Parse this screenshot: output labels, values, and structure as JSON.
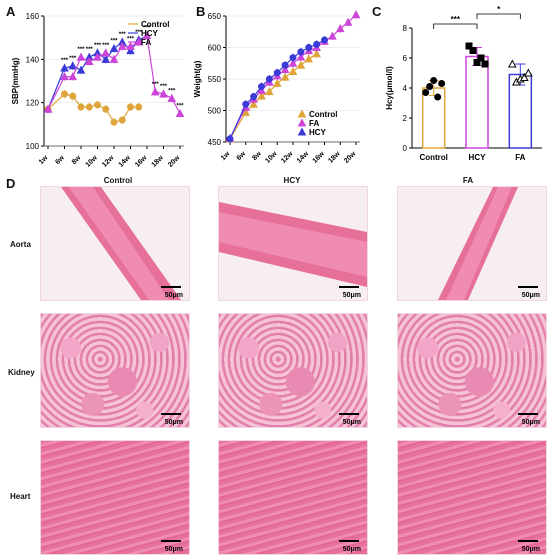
{
  "panel_labels": {
    "a": "A",
    "b": "B",
    "c": "C",
    "d": "D"
  },
  "colors": {
    "control": "#e0a53a",
    "hcy": "#3b3bd8",
    "fa": "#cc44d8",
    "axis": "#000000",
    "grid": "#dddddd"
  },
  "chart_data": [
    {
      "type": "line",
      "panel": "A",
      "ylabel": "SBP(mmHg)",
      "xlabel": "",
      "ylim": [
        100,
        160
      ],
      "yticks": [
        100,
        120,
        140,
        160
      ],
      "categories": [
        "1w",
        "6w",
        "8w",
        "10w",
        "12w",
        "14w",
        "16w",
        "18w",
        "20w"
      ],
      "legend": [
        "Control",
        "HCY",
        "FA"
      ],
      "legend_position": "top-right",
      "series": [
        {
          "name": "Control",
          "color": "#e0a53a",
          "x": [
            1,
            6,
            7,
            8,
            9,
            10,
            11,
            12,
            13,
            14,
            15,
            16
          ],
          "y": [
            117,
            124,
            123,
            118,
            118,
            119,
            117,
            111,
            112,
            118,
            118,
            null
          ]
        },
        {
          "name": "HCY",
          "color": "#3b3bd8",
          "x": [
            1,
            6,
            7,
            8,
            9,
            10,
            11,
            12,
            13,
            14,
            15,
            16
          ],
          "y": [
            117,
            136,
            137,
            135,
            141,
            143,
            140,
            145,
            148,
            144,
            149,
            151
          ]
        },
        {
          "name": "FA",
          "color": "#cc44d8",
          "x": [
            1,
            6,
            7,
            8,
            9,
            10,
            11,
            12,
            13,
            14,
            15,
            16,
            17,
            18,
            19,
            20
          ],
          "y": [
            117,
            132,
            132,
            141,
            139,
            141,
            143,
            140,
            146,
            146,
            148,
            151,
            125,
            124,
            122,
            115
          ]
        }
      ],
      "star_labels": [
        "***",
        "***",
        "***",
        "***",
        "***",
        "***",
        "***",
        "***",
        "***",
        "***",
        "***",
        "***",
        "***",
        "***",
        "***",
        "***"
      ]
    },
    {
      "type": "line",
      "panel": "B",
      "ylabel": "Weight(g)",
      "xlabel": "",
      "ylim": [
        450,
        650
      ],
      "yticks": [
        450,
        500,
        550,
        600,
        650
      ],
      "categories": [
        "1w",
        "6w",
        "8w",
        "10w",
        "12w",
        "14w",
        "16w",
        "18w",
        "20w"
      ],
      "legend": [
        "Control",
        "FA",
        "HCY"
      ],
      "legend_position": "bottom-right",
      "series": [
        {
          "name": "Control",
          "color": "#e0a53a",
          "x": [
            1,
            6,
            7,
            8,
            9,
            10,
            11,
            12,
            13,
            14,
            15,
            16
          ],
          "y": [
            455,
            497,
            510,
            523,
            530,
            543,
            553,
            562,
            572,
            582,
            590,
            null
          ]
        },
        {
          "name": "FA",
          "color": "#cc44d8",
          "x": [
            1,
            6,
            7,
            8,
            9,
            10,
            11,
            12,
            13,
            14,
            15,
            16,
            17,
            18,
            19,
            20
          ],
          "y": [
            456,
            505,
            518,
            532,
            545,
            555,
            565,
            575,
            585,
            595,
            600,
            610,
            618,
            630,
            640,
            652
          ]
        },
        {
          "name": "HCY",
          "color": "#3b3bd8",
          "x": [
            1,
            6,
            7,
            8,
            9,
            10,
            11,
            12,
            13,
            14,
            15,
            16
          ],
          "y": [
            455,
            510,
            522,
            538,
            550,
            560,
            572,
            584,
            593,
            600,
            605,
            612
          ]
        }
      ]
    },
    {
      "type": "bar",
      "panel": "C",
      "ylabel": "Hcy(μmol/l)",
      "ylim": [
        0,
        8
      ],
      "yticks": [
        0,
        2,
        4,
        6,
        8
      ],
      "categories": [
        "Control",
        "HCY",
        "FA"
      ],
      "values": [
        4.0,
        6.1,
        4.9
      ],
      "errors": [
        0.5,
        0.6,
        0.7
      ],
      "colors": [
        "#e0a53a",
        "#cc44d8",
        "#3b3bd8"
      ],
      "markers": [
        "circle",
        "square",
        "triangle"
      ],
      "points": [
        [
          3.7,
          4.1,
          4.5,
          3.4,
          4.3
        ],
        [
          6.8,
          6.5,
          5.7,
          6.0,
          5.6
        ],
        [
          5.6,
          4.4,
          4.6,
          4.7,
          5.0
        ]
      ],
      "significance": [
        {
          "pair": [
            "Control",
            "HCY"
          ],
          "label": "***"
        },
        {
          "pair": [
            "HCY",
            "FA"
          ],
          "label": "*"
        }
      ]
    }
  ],
  "histology": {
    "columns": [
      "Control",
      "HCY",
      "FA"
    ],
    "rows": [
      "Aorta",
      "Kidney",
      "Heart"
    ],
    "scale_label": "50μm"
  }
}
